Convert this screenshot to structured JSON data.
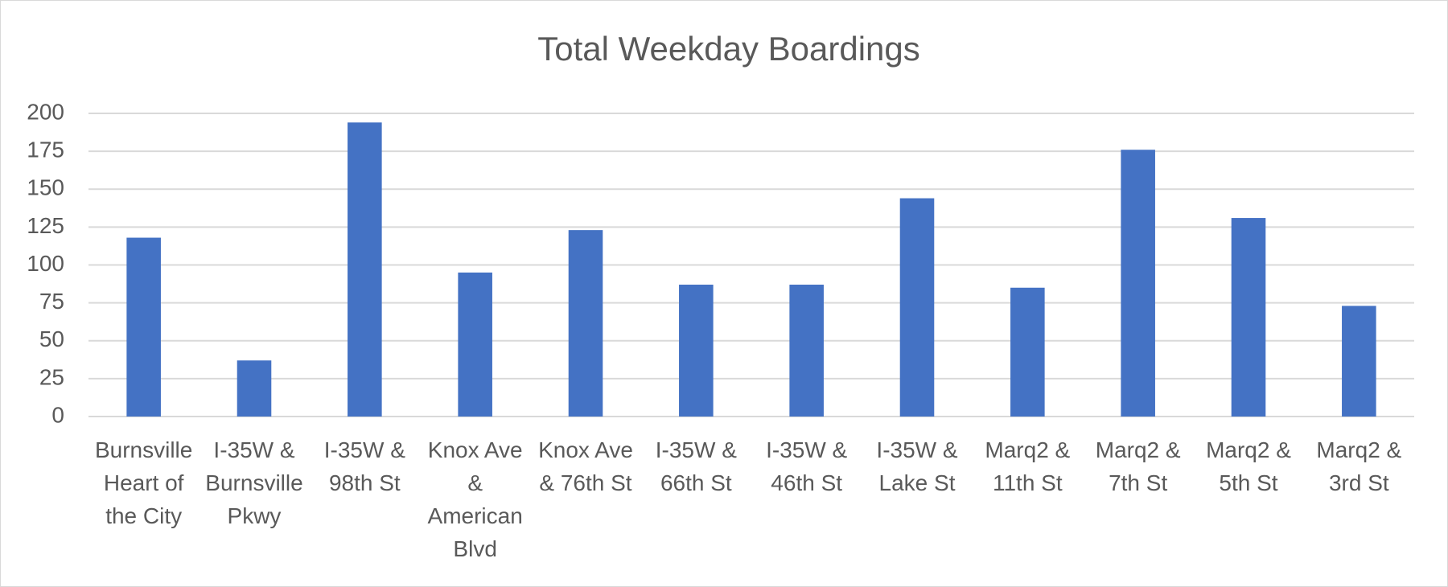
{
  "chart_data": {
    "type": "bar",
    "title": "Total Weekday Boardings",
    "categories": [
      "Burnsville Heart of the City",
      "I-35W & Burnsville Pkwy",
      "I-35W & 98th St",
      "Knox Ave & American Blvd",
      "Knox Ave & 76th St",
      "I-35W & 66th St",
      "I-35W & 46th St",
      "I-35W & Lake St",
      "Marq2 & 11th St",
      "Marq2 & 7th St",
      "Marq2 & 5th St",
      "Marq2 & 3rd St"
    ],
    "values": [
      118,
      37,
      194,
      95,
      123,
      87,
      87,
      144,
      85,
      176,
      131,
      73
    ],
    "color": "#4472c4",
    "ylim": [
      0,
      200
    ],
    "yticks": [
      0,
      25,
      50,
      75,
      100,
      125,
      150,
      175,
      200
    ],
    "grid": true
  }
}
